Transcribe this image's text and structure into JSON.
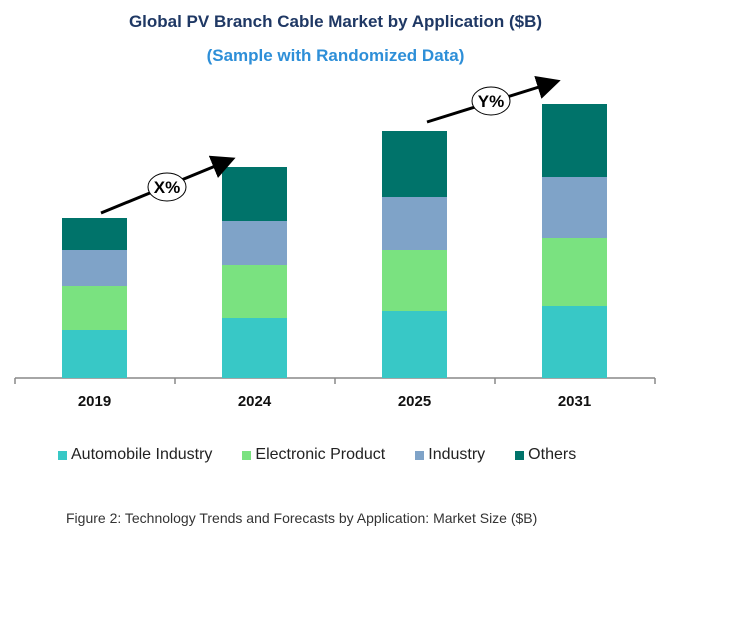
{
  "chart_data": {
    "type": "bar",
    "stacked": true,
    "title": "Global PV Branch Cable Market by Application ($B)",
    "subtitle": "(Sample with Randomized Data)",
    "categories": [
      "2019",
      "2024",
      "2025",
      "2031"
    ],
    "series": [
      {
        "name": "Automobile Industry",
        "color": "#38C8C6",
        "values": [
          4.8,
          6.0,
          6.7,
          7.2
        ]
      },
      {
        "name": "Electronic Product",
        "color": "#7AE280",
        "values": [
          4.4,
          5.3,
          6.1,
          6.8
        ]
      },
      {
        "name": "Industry",
        "color": "#7FA3C8",
        "values": [
          3.6,
          4.4,
          5.3,
          6.1
        ]
      },
      {
        "name": "Others",
        "color": "#00736A",
        "values": [
          3.2,
          5.4,
          6.6,
          7.3
        ]
      }
    ],
    "y_axis_shown": false,
    "grid": false,
    "legend_position": "bottom",
    "annotations": [
      {
        "label": "X%",
        "from": "2019",
        "to": "2024"
      },
      {
        "label": "Y%",
        "from": "2025",
        "to": "2031"
      }
    ],
    "caption": "Figure 2: Technology  Trends  and Forecasts by Application: Market Size ($B)"
  }
}
